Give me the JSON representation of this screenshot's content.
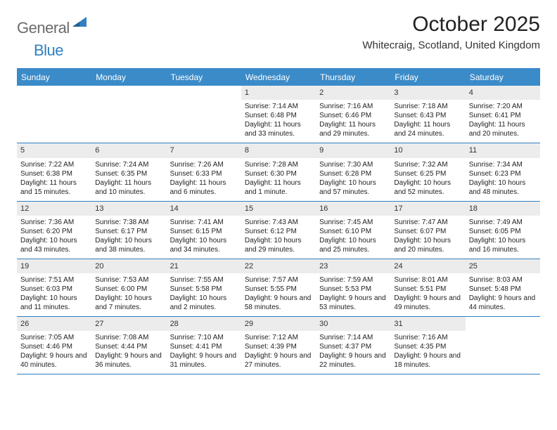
{
  "brand": {
    "part1": "General",
    "part2": "Blue"
  },
  "title": "October 2025",
  "subtitle": "Whitecraig, Scotland, United Kingdom",
  "colors": {
    "header_bg": "#3b8bc9",
    "header_text": "#ffffff",
    "border": "#2f7fc1",
    "daynum_bg": "#ececec",
    "page_bg": "#ffffff",
    "text": "#222222",
    "logo_gray": "#6b6b6b",
    "logo_blue": "#2f7fc1"
  },
  "day_names": [
    "Sunday",
    "Monday",
    "Tuesday",
    "Wednesday",
    "Thursday",
    "Friday",
    "Saturday"
  ],
  "weeks": [
    [
      {
        "n": "",
        "sunrise": "",
        "sunset": "",
        "daylight": ""
      },
      {
        "n": "",
        "sunrise": "",
        "sunset": "",
        "daylight": ""
      },
      {
        "n": "",
        "sunrise": "",
        "sunset": "",
        "daylight": ""
      },
      {
        "n": "1",
        "sunrise": "Sunrise: 7:14 AM",
        "sunset": "Sunset: 6:48 PM",
        "daylight": "Daylight: 11 hours and 33 minutes."
      },
      {
        "n": "2",
        "sunrise": "Sunrise: 7:16 AM",
        "sunset": "Sunset: 6:46 PM",
        "daylight": "Daylight: 11 hours and 29 minutes."
      },
      {
        "n": "3",
        "sunrise": "Sunrise: 7:18 AM",
        "sunset": "Sunset: 6:43 PM",
        "daylight": "Daylight: 11 hours and 24 minutes."
      },
      {
        "n": "4",
        "sunrise": "Sunrise: 7:20 AM",
        "sunset": "Sunset: 6:41 PM",
        "daylight": "Daylight: 11 hours and 20 minutes."
      }
    ],
    [
      {
        "n": "5",
        "sunrise": "Sunrise: 7:22 AM",
        "sunset": "Sunset: 6:38 PM",
        "daylight": "Daylight: 11 hours and 15 minutes."
      },
      {
        "n": "6",
        "sunrise": "Sunrise: 7:24 AM",
        "sunset": "Sunset: 6:35 PM",
        "daylight": "Daylight: 11 hours and 10 minutes."
      },
      {
        "n": "7",
        "sunrise": "Sunrise: 7:26 AM",
        "sunset": "Sunset: 6:33 PM",
        "daylight": "Daylight: 11 hours and 6 minutes."
      },
      {
        "n": "8",
        "sunrise": "Sunrise: 7:28 AM",
        "sunset": "Sunset: 6:30 PM",
        "daylight": "Daylight: 11 hours and 1 minute."
      },
      {
        "n": "9",
        "sunrise": "Sunrise: 7:30 AM",
        "sunset": "Sunset: 6:28 PM",
        "daylight": "Daylight: 10 hours and 57 minutes."
      },
      {
        "n": "10",
        "sunrise": "Sunrise: 7:32 AM",
        "sunset": "Sunset: 6:25 PM",
        "daylight": "Daylight: 10 hours and 52 minutes."
      },
      {
        "n": "11",
        "sunrise": "Sunrise: 7:34 AM",
        "sunset": "Sunset: 6:23 PM",
        "daylight": "Daylight: 10 hours and 48 minutes."
      }
    ],
    [
      {
        "n": "12",
        "sunrise": "Sunrise: 7:36 AM",
        "sunset": "Sunset: 6:20 PM",
        "daylight": "Daylight: 10 hours and 43 minutes."
      },
      {
        "n": "13",
        "sunrise": "Sunrise: 7:38 AM",
        "sunset": "Sunset: 6:17 PM",
        "daylight": "Daylight: 10 hours and 38 minutes."
      },
      {
        "n": "14",
        "sunrise": "Sunrise: 7:41 AM",
        "sunset": "Sunset: 6:15 PM",
        "daylight": "Daylight: 10 hours and 34 minutes."
      },
      {
        "n": "15",
        "sunrise": "Sunrise: 7:43 AM",
        "sunset": "Sunset: 6:12 PM",
        "daylight": "Daylight: 10 hours and 29 minutes."
      },
      {
        "n": "16",
        "sunrise": "Sunrise: 7:45 AM",
        "sunset": "Sunset: 6:10 PM",
        "daylight": "Daylight: 10 hours and 25 minutes."
      },
      {
        "n": "17",
        "sunrise": "Sunrise: 7:47 AM",
        "sunset": "Sunset: 6:07 PM",
        "daylight": "Daylight: 10 hours and 20 minutes."
      },
      {
        "n": "18",
        "sunrise": "Sunrise: 7:49 AM",
        "sunset": "Sunset: 6:05 PM",
        "daylight": "Daylight: 10 hours and 16 minutes."
      }
    ],
    [
      {
        "n": "19",
        "sunrise": "Sunrise: 7:51 AM",
        "sunset": "Sunset: 6:03 PM",
        "daylight": "Daylight: 10 hours and 11 minutes."
      },
      {
        "n": "20",
        "sunrise": "Sunrise: 7:53 AM",
        "sunset": "Sunset: 6:00 PM",
        "daylight": "Daylight: 10 hours and 7 minutes."
      },
      {
        "n": "21",
        "sunrise": "Sunrise: 7:55 AM",
        "sunset": "Sunset: 5:58 PM",
        "daylight": "Daylight: 10 hours and 2 minutes."
      },
      {
        "n": "22",
        "sunrise": "Sunrise: 7:57 AM",
        "sunset": "Sunset: 5:55 PM",
        "daylight": "Daylight: 9 hours and 58 minutes."
      },
      {
        "n": "23",
        "sunrise": "Sunrise: 7:59 AM",
        "sunset": "Sunset: 5:53 PM",
        "daylight": "Daylight: 9 hours and 53 minutes."
      },
      {
        "n": "24",
        "sunrise": "Sunrise: 8:01 AM",
        "sunset": "Sunset: 5:51 PM",
        "daylight": "Daylight: 9 hours and 49 minutes."
      },
      {
        "n": "25",
        "sunrise": "Sunrise: 8:03 AM",
        "sunset": "Sunset: 5:48 PM",
        "daylight": "Daylight: 9 hours and 44 minutes."
      }
    ],
    [
      {
        "n": "26",
        "sunrise": "Sunrise: 7:05 AM",
        "sunset": "Sunset: 4:46 PM",
        "daylight": "Daylight: 9 hours and 40 minutes."
      },
      {
        "n": "27",
        "sunrise": "Sunrise: 7:08 AM",
        "sunset": "Sunset: 4:44 PM",
        "daylight": "Daylight: 9 hours and 36 minutes."
      },
      {
        "n": "28",
        "sunrise": "Sunrise: 7:10 AM",
        "sunset": "Sunset: 4:41 PM",
        "daylight": "Daylight: 9 hours and 31 minutes."
      },
      {
        "n": "29",
        "sunrise": "Sunrise: 7:12 AM",
        "sunset": "Sunset: 4:39 PM",
        "daylight": "Daylight: 9 hours and 27 minutes."
      },
      {
        "n": "30",
        "sunrise": "Sunrise: 7:14 AM",
        "sunset": "Sunset: 4:37 PM",
        "daylight": "Daylight: 9 hours and 22 minutes."
      },
      {
        "n": "31",
        "sunrise": "Sunrise: 7:16 AM",
        "sunset": "Sunset: 4:35 PM",
        "daylight": "Daylight: 9 hours and 18 minutes."
      },
      {
        "n": "",
        "sunrise": "",
        "sunset": "",
        "daylight": ""
      }
    ]
  ]
}
